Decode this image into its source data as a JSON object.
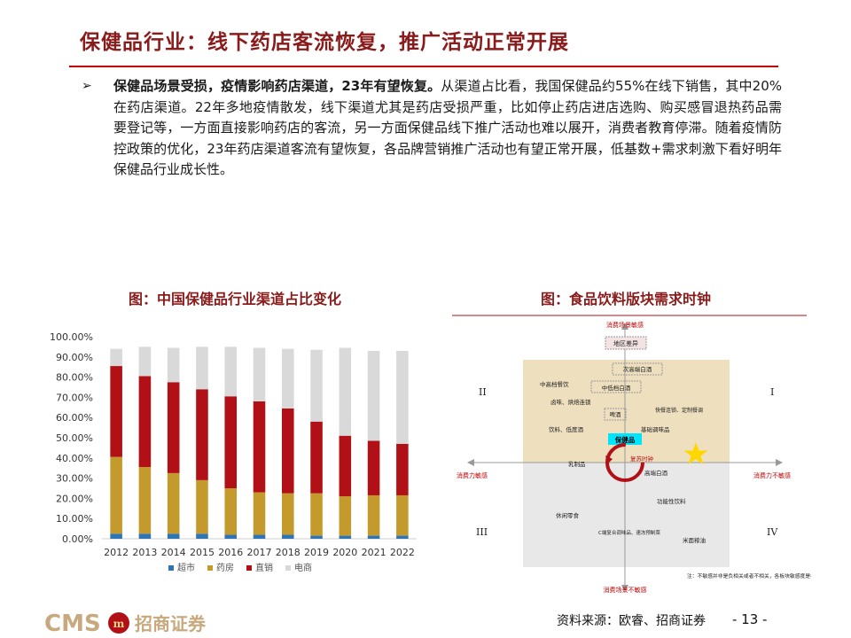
{
  "header": {
    "title": "保健品行业：线下药店客流恢复，推广活动正常开展"
  },
  "bullet": {
    "marker": "➢",
    "lead": "保健品场景受损，疫情影响药店渠道，23年有望恢复。",
    "body": "从渠道占比看，我国保健品约55%在线下销售，其中20%在药店渠道。22年多地疫情散发，线下渠道尤其是药店受损严重，比如停止药店进店选购、购买感冒退热药品需要登记等，一方面直接影响药店的客流，另一方面保健品线下推广活动也难以展开，消费者教育停滞。随着疫情防控政策的优化，23年药店渠道客流有望恢复，各品牌营销推广活动也有望正常开展，低基数+需求刺激下看好明年保健品行业成长性。"
  },
  "chart1_title": "图：中国保健品行业渠道占比变化",
  "chart2_title": "图：食品饮料版块需求时钟",
  "chart_data": [
    {
      "type": "bar",
      "stacked": true,
      "title": "图：中国保健品行业渠道占比变化",
      "categories": [
        "2012",
        "2013",
        "2014",
        "2015",
        "2016",
        "2017",
        "2018",
        "2019",
        "2020",
        "2021",
        "2022"
      ],
      "y_ticks": [
        "0.00%",
        "10.00%",
        "20.00%",
        "30.00%",
        "40.00%",
        "50.00%",
        "60.00%",
        "70.00%",
        "80.00%",
        "90.00%",
        "100.00%"
      ],
      "ylim": [
        0,
        100
      ],
      "legend_position": "bottom",
      "grid": false,
      "series": [
        {
          "name": "超市",
          "color": "#2e75b6",
          "values": [
            2.5,
            2.5,
            2.5,
            2.5,
            2.0,
            2.0,
            2.0,
            1.5,
            1.5,
            1.5,
            1.5
          ]
        },
        {
          "name": "药房",
          "color": "#c49a2c",
          "values": [
            38,
            33,
            30,
            26.5,
            23,
            21,
            20.5,
            21,
            19.5,
            20,
            20
          ]
        },
        {
          "name": "直销",
          "color": "#b11116",
          "values": [
            45,
            45,
            45,
            45,
            45.5,
            45,
            42,
            35.5,
            30,
            27,
            25.5
          ]
        },
        {
          "name": "电商",
          "color": "#d9d9d9",
          "values": [
            8.5,
            14.5,
            17,
            21,
            24.5,
            26.5,
            29.5,
            35.5,
            43.5,
            44.5,
            46
          ]
        }
      ]
    },
    {
      "type": "diagram",
      "title": "图：食品饮料版块需求时钟",
      "axis_top": "消费场景敏感",
      "axis_bottom": "消费场景不敏感",
      "axis_left": "消费力敏感",
      "axis_right": "消费力不敏感",
      "quadrants": [
        "II",
        "I",
        "III",
        "IV"
      ],
      "items": {
        "region": "地区差异",
        "high_end_liquor": "次高端白酒",
        "mid_high_catering": "中高档餐饮",
        "mid_low_liquor": "中低档白酒",
        "bakery": "卤味、烘焙连锁",
        "beer": "啤酒",
        "fast_food": "快餐连锁、定制餐调",
        "basic_condiments": "基础调味品",
        "beverages": "饮料、低度酒",
        "dairy": "乳制品",
        "health_products": "保健品",
        "recovery_clock": "复苏时钟",
        "premium_liquor": "高端白酒",
        "functional_drinks": "功能性饮料",
        "snacks": "休闲零食",
        "c_end": "C端复合调味品、速冻预制菜",
        "rice_noodles": "米面粮油"
      },
      "note": "注：不敏感并非是负相关或者不相关，各板块敏感度是相对概念",
      "star_color": "#ffd700"
    }
  ],
  "footer": {
    "brand_text": "CMS",
    "brand_cn": "招商证券",
    "source": "资料来源：欧睿、招商证券",
    "page": "- 13 -"
  }
}
